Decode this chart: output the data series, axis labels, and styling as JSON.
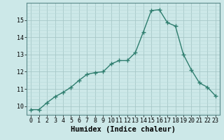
{
  "x": [
    0,
    1,
    2,
    3,
    4,
    5,
    6,
    7,
    8,
    9,
    10,
    11,
    12,
    13,
    14,
    15,
    16,
    17,
    18,
    19,
    20,
    21,
    22,
    23
  ],
  "y": [
    9.8,
    9.8,
    10.2,
    10.55,
    10.8,
    11.1,
    11.5,
    11.85,
    11.95,
    12.0,
    12.45,
    12.65,
    12.65,
    13.1,
    14.3,
    15.55,
    15.6,
    14.85,
    14.65,
    13.0,
    12.1,
    11.35,
    11.1,
    10.6
  ],
  "line_color": "#2e7d6e",
  "marker": "+",
  "marker_size": 4,
  "marker_edge_width": 1.0,
  "bg_color": "#cce8e8",
  "grid_minor_color": "#b8d8d8",
  "grid_major_color": "#a8c8c8",
  "xlabel": "Humidex (Indice chaleur)",
  "xlabel_fontsize": 7.5,
  "ylim": [
    9.5,
    16.0
  ],
  "xlim": [
    -0.5,
    23.5
  ],
  "yticks": [
    10,
    11,
    12,
    13,
    14,
    15
  ],
  "xticks": [
    0,
    1,
    2,
    3,
    4,
    5,
    6,
    7,
    8,
    9,
    10,
    11,
    12,
    13,
    14,
    15,
    16,
    17,
    18,
    19,
    20,
    21,
    22,
    23
  ],
  "tick_fontsize": 6,
  "line_width": 1.0,
  "spine_color": "#5a8a8a"
}
